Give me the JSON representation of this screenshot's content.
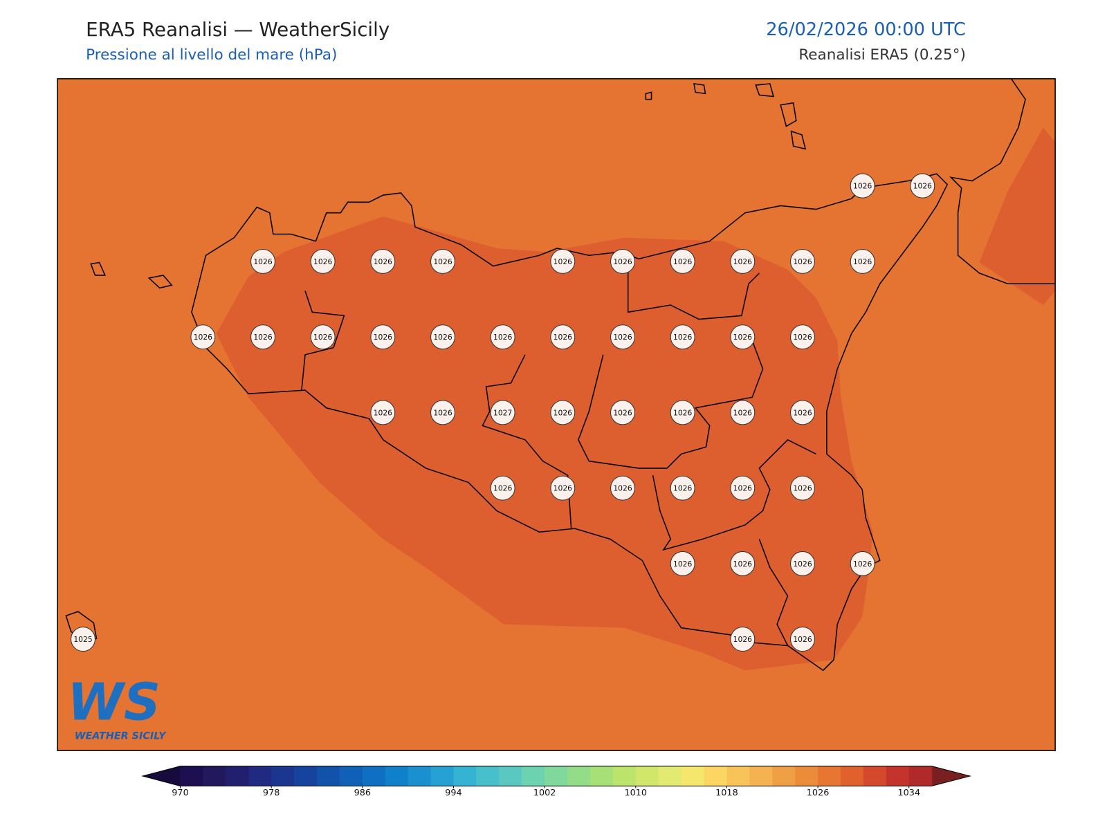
{
  "header": {
    "title": "ERA5 Reanalisi — WeatherSicily",
    "subtitle": "Pressione al livello del mare (hPa)",
    "datetime": "26/02/2026 00:00 UTC",
    "source": "Reanalisi ERA5 (0.25°)"
  },
  "map": {
    "grid_values": [
      [
        null,
        null,
        null,
        null,
        null,
        null,
        null,
        null,
        null,
        null,
        null,
        null,
        null,
        1026,
        1026
      ],
      [
        null,
        null,
        null,
        1026,
        1026,
        1026,
        1026,
        null,
        1026,
        1026,
        1026,
        1026,
        1026,
        1026,
        null
      ],
      [
        null,
        null,
        1026,
        1026,
        1026,
        1026,
        1026,
        1026,
        1026,
        1026,
        1026,
        1026,
        1026,
        null,
        null
      ],
      [
        null,
        null,
        null,
        null,
        null,
        1026,
        1026,
        1027,
        1026,
        1026,
        1026,
        1026,
        1026,
        null,
        null
      ],
      [
        null,
        null,
        null,
        null,
        null,
        null,
        null,
        1026,
        1026,
        1026,
        1026,
        1026,
        1026,
        null,
        null
      ],
      [
        null,
        null,
        null,
        null,
        null,
        null,
        null,
        null,
        null,
        null,
        1026,
        1026,
        1026,
        1026,
        null
      ],
      [
        1025,
        null,
        null,
        null,
        null,
        null,
        null,
        null,
        null,
        null,
        null,
        1026,
        1026,
        null,
        null
      ]
    ]
  },
  "colorbar": {
    "lim": [
      970,
      1036
    ],
    "ticks": [
      970,
      978,
      986,
      994,
      1002,
      1010,
      1018,
      1026,
      1034
    ],
    "colors": [
      "#1e1050",
      "#21185e",
      "#22206e",
      "#1f2a80",
      "#1a368f",
      "#16439d",
      "#1352ab",
      "#1160b8",
      "#0f6fc2",
      "#1180cb",
      "#1b90d0",
      "#27a0d3",
      "#36b2d3",
      "#48c0cc",
      "#5ac8c0",
      "#6dd2b0",
      "#80d89c",
      "#93dc88",
      "#a6e077",
      "#bce36b",
      "#d1e76c",
      "#e2ea72",
      "#f5e66e",
      "#fbd663",
      "#f8c45a",
      "#f5b250",
      "#f0a044",
      "#eb8c3a",
      "#e67632",
      "#e0602e",
      "#d4482c",
      "#c4332c",
      "#b12a2a"
    ],
    "extend_colors": [
      "#160b3c",
      "#7a1f1f"
    ]
  },
  "logo": {
    "initials": "WS",
    "text": "WEATHER SICILY"
  }
}
